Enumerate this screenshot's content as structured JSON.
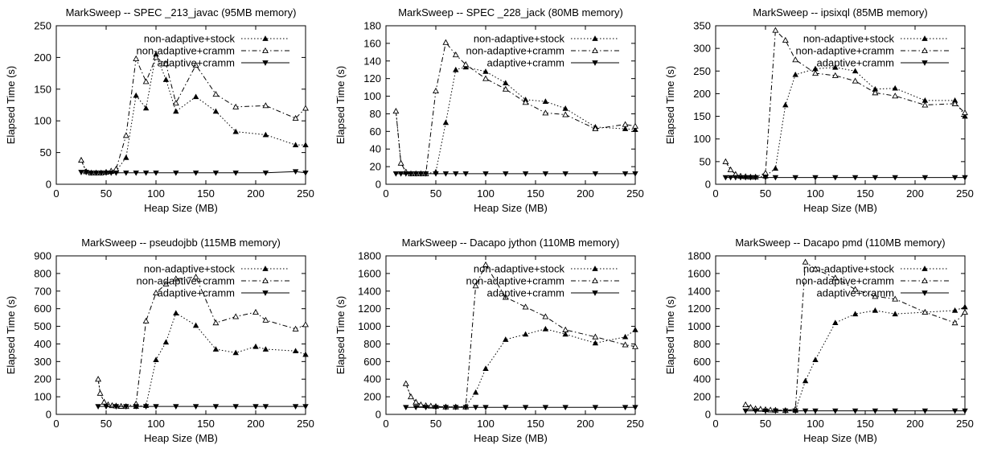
{
  "chart_data": [
    {
      "type": "line",
      "title": "MarkSweep -- SPEC _213_javac (95MB memory)",
      "xlabel": "Heap Size (MB)",
      "ylabel": "Elapsed Time (s)",
      "xlim": [
        0,
        250
      ],
      "ylim": [
        0,
        250
      ],
      "xticks": [
        0,
        50,
        100,
        150,
        200,
        250
      ],
      "yticks": [
        0,
        50,
        100,
        150,
        200,
        250
      ],
      "legend": "top-right",
      "series": [
        {
          "name": "non-adaptive+stock",
          "marker": "triangle-up-filled",
          "dash": "dotted",
          "x": [
            25,
            30,
            35,
            40,
            45,
            50,
            55,
            60,
            70,
            80,
            90,
            100,
            110,
            120,
            140,
            160,
            180,
            210,
            240,
            250
          ],
          "y": [
            38,
            20,
            18,
            18,
            18,
            19,
            20,
            21,
            42,
            140,
            120,
            205,
            165,
            115,
            138,
            115,
            83,
            78,
            62,
            62
          ]
        },
        {
          "name": "non-adaptive+cramm",
          "marker": "triangle-up-open",
          "dash": "dashdot",
          "x": [
            25,
            30,
            35,
            40,
            45,
            50,
            55,
            60,
            70,
            80,
            90,
            100,
            110,
            120,
            140,
            160,
            180,
            210,
            240,
            250
          ],
          "y": [
            38,
            20,
            18,
            18,
            18,
            19,
            21,
            24,
            77,
            198,
            162,
            200,
            190,
            128,
            188,
            142,
            122,
            124,
            104,
            120
          ]
        },
        {
          "name": "adaptive+cramm",
          "marker": "triangle-down-filled",
          "dash": "solid",
          "x": [
            25,
            30,
            35,
            40,
            45,
            50,
            55,
            60,
            70,
            80,
            90,
            100,
            120,
            140,
            160,
            180,
            210,
            240,
            250
          ],
          "y": [
            19,
            19,
            18,
            18,
            18,
            18,
            18,
            18,
            18,
            18,
            18,
            18,
            18,
            18,
            18,
            18,
            18,
            20,
            18
          ]
        }
      ]
    },
    {
      "type": "line",
      "title": "MarkSweep -- SPEC _228_jack (80MB memory)",
      "xlabel": "Heap Size (MB)",
      "ylabel": "Elapsed Time (s)",
      "xlim": [
        0,
        250
      ],
      "ylim": [
        0,
        180
      ],
      "xticks": [
        0,
        50,
        100,
        150,
        200,
        250
      ],
      "yticks": [
        0,
        20,
        40,
        60,
        80,
        100,
        120,
        140,
        160,
        180
      ],
      "legend": "top-right",
      "series": [
        {
          "name": "non-adaptive+stock",
          "marker": "triangle-up-filled",
          "dash": "dotted",
          "x": [
            10,
            15,
            20,
            25,
            30,
            35,
            40,
            50,
            60,
            70,
            80,
            100,
            120,
            140,
            160,
            180,
            210,
            240,
            250
          ],
          "y": [
            83,
            24,
            14,
            12,
            12,
            12,
            12,
            14,
            70,
            130,
            133,
            128,
            115,
            96,
            94,
            86,
            65,
            63,
            62
          ]
        },
        {
          "name": "non-adaptive+cramm",
          "marker": "triangle-up-open",
          "dash": "dashdot",
          "x": [
            10,
            15,
            20,
            25,
            30,
            35,
            40,
            50,
            60,
            70,
            80,
            100,
            120,
            140,
            160,
            180,
            210,
            240,
            250
          ],
          "y": [
            83,
            24,
            14,
            12,
            12,
            12,
            12,
            106,
            161,
            147,
            136,
            120,
            108,
            93,
            81,
            79,
            63,
            68,
            66
          ]
        },
        {
          "name": "adaptive+cramm",
          "marker": "triangle-down-filled",
          "dash": "solid",
          "x": [
            10,
            15,
            20,
            25,
            30,
            35,
            40,
            50,
            60,
            70,
            80,
            100,
            120,
            140,
            160,
            180,
            210,
            240,
            250
          ],
          "y": [
            12,
            12,
            12,
            12,
            12,
            12,
            12,
            12,
            12,
            12,
            12,
            12,
            12,
            12,
            12,
            12,
            12,
            12,
            12
          ]
        }
      ]
    },
    {
      "type": "line",
      "title": "MarkSweep -- ipsixql (85MB memory)",
      "xlabel": "Heap Size (MB)",
      "ylabel": "Elapsed Time (s)",
      "xlim": [
        0,
        250
      ],
      "ylim": [
        0,
        350
      ],
      "xticks": [
        0,
        50,
        100,
        150,
        200,
        250
      ],
      "yticks": [
        0,
        50,
        100,
        150,
        200,
        250,
        300,
        350
      ],
      "legend": "top-right",
      "series": [
        {
          "name": "non-adaptive+stock",
          "marker": "triangle-up-filled",
          "dash": "dotted",
          "x": [
            10,
            15,
            20,
            25,
            30,
            35,
            40,
            50,
            60,
            70,
            80,
            100,
            120,
            140,
            160,
            180,
            210,
            240,
            250
          ],
          "y": [
            50,
            32,
            22,
            18,
            17,
            16,
            16,
            18,
            35,
            175,
            242,
            255,
            258,
            250,
            210,
            212,
            185,
            185,
            150
          ]
        },
        {
          "name": "non-adaptive+cramm",
          "marker": "triangle-up-open",
          "dash": "dashdot",
          "x": [
            10,
            15,
            20,
            25,
            30,
            35,
            40,
            50,
            60,
            70,
            80,
            100,
            120,
            140,
            160,
            180,
            210,
            240,
            250
          ],
          "y": [
            50,
            32,
            22,
            18,
            17,
            16,
            16,
            25,
            340,
            318,
            275,
            245,
            240,
            228,
            202,
            195,
            175,
            178,
            158
          ]
        },
        {
          "name": "adaptive+cramm",
          "marker": "triangle-down-filled",
          "dash": "solid",
          "x": [
            10,
            15,
            20,
            25,
            30,
            35,
            40,
            50,
            60,
            80,
            100,
            120,
            140,
            160,
            180,
            210,
            240,
            250
          ],
          "y": [
            15,
            15,
            15,
            15,
            15,
            15,
            15,
            15,
            15,
            15,
            15,
            15,
            15,
            15,
            15,
            15,
            15,
            15
          ]
        }
      ]
    },
    {
      "type": "line",
      "title": "MarkSweep -- pseudojbb (115MB memory)",
      "xlabel": "Heap Size (MB)",
      "ylabel": "Elapsed Time (s)",
      "xlim": [
        0,
        250
      ],
      "ylim": [
        0,
        900
      ],
      "xticks": [
        0,
        50,
        100,
        150,
        200,
        250
      ],
      "yticks": [
        0,
        100,
        200,
        300,
        400,
        500,
        600,
        700,
        800,
        900
      ],
      "legend": "top-right",
      "series": [
        {
          "name": "non-adaptive+stock",
          "marker": "triangle-up-filled",
          "dash": "dotted",
          "x": [
            42,
            44,
            48,
            52,
            56,
            60,
            65,
            70,
            80,
            90,
            100,
            110,
            120,
            140,
            160,
            180,
            200,
            210,
            240,
            250
          ],
          "y": [
            200,
            120,
            70,
            55,
            50,
            48,
            46,
            45,
            45,
            50,
            310,
            410,
            575,
            505,
            370,
            350,
            385,
            370,
            360,
            340
          ]
        },
        {
          "name": "non-adaptive+cramm",
          "marker": "triangle-up-open",
          "dash": "dashdot",
          "x": [
            42,
            44,
            48,
            52,
            56,
            60,
            65,
            70,
            80,
            90,
            100,
            110,
            120,
            140,
            160,
            180,
            200,
            210,
            240,
            250
          ],
          "y": [
            200,
            120,
            70,
            55,
            50,
            48,
            46,
            45,
            60,
            530,
            690,
            740,
            770,
            780,
            520,
            555,
            580,
            535,
            485,
            510
          ]
        },
        {
          "name": "adaptive+cramm",
          "marker": "triangle-down-filled",
          "dash": "solid",
          "x": [
            42,
            50,
            60,
            70,
            80,
            90,
            100,
            120,
            140,
            160,
            180,
            200,
            210,
            240,
            250
          ],
          "y": [
            45,
            45,
            45,
            45,
            45,
            45,
            45,
            45,
            45,
            45,
            45,
            45,
            45,
            45,
            45
          ]
        }
      ]
    },
    {
      "type": "line",
      "title": "MarkSweep -- Dacapo jython (110MB memory)",
      "xlabel": "Heap Size (MB)",
      "ylabel": "Elapsed Time (s)",
      "xlim": [
        0,
        250
      ],
      "ylim": [
        0,
        1800
      ],
      "xticks": [
        0,
        50,
        100,
        150,
        200,
        250
      ],
      "yticks": [
        0,
        200,
        400,
        600,
        800,
        1000,
        1200,
        1400,
        1600,
        1800
      ],
      "legend": "top-right",
      "series": [
        {
          "name": "non-adaptive+stock",
          "marker": "triangle-up-filled",
          "dash": "dotted",
          "x": [
            20,
            25,
            30,
            35,
            40,
            45,
            50,
            60,
            70,
            80,
            90,
            100,
            120,
            140,
            160,
            180,
            210,
            240,
            250
          ],
          "y": [
            350,
            200,
            140,
            110,
            100,
            95,
            90,
            85,
            85,
            90,
            250,
            520,
            850,
            910,
            970,
            910,
            810,
            880,
            960
          ]
        },
        {
          "name": "non-adaptive+cramm",
          "marker": "triangle-up-open",
          "dash": "dashdot",
          "x": [
            20,
            25,
            30,
            35,
            40,
            45,
            50,
            60,
            70,
            80,
            90,
            100,
            120,
            140,
            160,
            180,
            210,
            240,
            250
          ],
          "y": [
            350,
            200,
            140,
            110,
            100,
            95,
            90,
            85,
            85,
            85,
            1460,
            1700,
            1330,
            1220,
            1110,
            960,
            880,
            790,
            770
          ]
        },
        {
          "name": "adaptive+cramm",
          "marker": "triangle-down-filled",
          "dash": "solid",
          "x": [
            20,
            30,
            40,
            50,
            60,
            70,
            80,
            90,
            100,
            120,
            140,
            160,
            180,
            210,
            240,
            250
          ],
          "y": [
            80,
            80,
            80,
            80,
            80,
            80,
            80,
            80,
            80,
            80,
            80,
            80,
            80,
            80,
            80,
            80
          ]
        }
      ]
    },
    {
      "type": "line",
      "title": "MarkSweep -- Dacapo pmd (110MB memory)",
      "xlabel": "Heap Size (MB)",
      "ylabel": "Elapsed Time (s)",
      "xlim": [
        0,
        250
      ],
      "ylim": [
        0,
        1800
      ],
      "xticks": [
        0,
        50,
        100,
        150,
        200,
        250
      ],
      "yticks": [
        0,
        200,
        400,
        600,
        800,
        1000,
        1200,
        1400,
        1600,
        1800
      ],
      "legend": "top-right",
      "series": [
        {
          "name": "non-adaptive+stock",
          "marker": "triangle-up-filled",
          "dash": "dotted",
          "x": [
            30,
            35,
            40,
            45,
            50,
            55,
            60,
            70,
            80,
            90,
            100,
            120,
            140,
            160,
            180,
            210,
            240,
            250
          ],
          "y": [
            110,
            80,
            65,
            60,
            55,
            50,
            48,
            45,
            45,
            380,
            620,
            1040,
            1140,
            1180,
            1140,
            1160,
            1180,
            1220
          ]
        },
        {
          "name": "non-adaptive+cramm",
          "marker": "triangle-up-open",
          "dash": "dashdot",
          "x": [
            30,
            35,
            40,
            45,
            50,
            55,
            60,
            70,
            80,
            90,
            100,
            120,
            140,
            160,
            180,
            210,
            240,
            250
          ],
          "y": [
            110,
            80,
            65,
            60,
            55,
            50,
            48,
            45,
            60,
            1730,
            1650,
            1550,
            1420,
            1340,
            1310,
            1160,
            1040,
            1160
          ]
        },
        {
          "name": "adaptive+cramm",
          "marker": "triangle-down-filled",
          "dash": "solid",
          "x": [
            30,
            40,
            50,
            60,
            70,
            80,
            90,
            100,
            120,
            140,
            160,
            180,
            210,
            240,
            250
          ],
          "y": [
            40,
            40,
            40,
            40,
            40,
            40,
            40,
            40,
            40,
            40,
            40,
            40,
            40,
            40,
            40
          ]
        }
      ]
    }
  ]
}
